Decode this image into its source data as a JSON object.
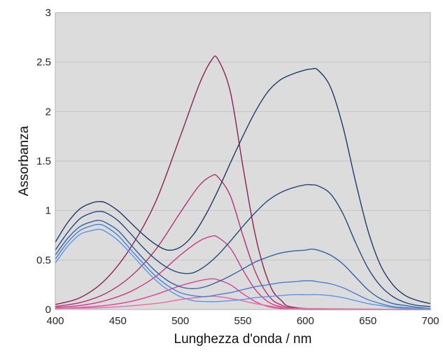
{
  "chart_data": {
    "type": "line",
    "xlabel": "Lunghezza d'onda / nm",
    "ylabel": "Assorbanza",
    "xlim": [
      400,
      700
    ],
    "ylim": [
      0,
      3
    ],
    "xticks": [
      400,
      450,
      500,
      550,
      600,
      650,
      700
    ],
    "yticks": [
      0,
      0.5,
      1,
      1.5,
      2,
      2.5,
      3
    ],
    "xtick_labels": [
      "400",
      "450",
      "500",
      "550",
      "600",
      "650",
      "700"
    ],
    "ytick_labels": [
      "0",
      "0.5",
      "1",
      "1.5",
      "2",
      "2.5",
      "3"
    ],
    "grid": "horizontal",
    "legend": "none",
    "plot_background": "#dcdcdc",
    "series": [
      {
        "color": "#8b2252",
        "x": [
          400,
          420,
          440,
          460,
          480,
          500,
          515,
          525,
          530,
          540,
          550,
          560,
          570,
          580,
          600,
          700
        ],
        "y": [
          0.05,
          0.12,
          0.3,
          0.62,
          1.08,
          1.75,
          2.27,
          2.52,
          2.53,
          2.2,
          1.45,
          0.75,
          0.3,
          0.1,
          0.01,
          0.0
        ]
      },
      {
        "color": "#b03470",
        "x": [
          400,
          420,
          440,
          460,
          480,
          500,
          515,
          525,
          530,
          540,
          550,
          560,
          570,
          580,
          600,
          700
        ],
        "y": [
          0.03,
          0.07,
          0.16,
          0.33,
          0.6,
          0.98,
          1.25,
          1.35,
          1.34,
          1.15,
          0.75,
          0.38,
          0.15,
          0.05,
          0.01,
          0.0
        ]
      },
      {
        "color": "#c83c8a",
        "x": [
          400,
          420,
          440,
          460,
          480,
          500,
          515,
          525,
          530,
          540,
          550,
          560,
          570,
          580,
          600,
          700
        ],
        "y": [
          0.02,
          0.04,
          0.09,
          0.18,
          0.33,
          0.55,
          0.69,
          0.74,
          0.73,
          0.62,
          0.4,
          0.2,
          0.08,
          0.03,
          0.0,
          0.0
        ]
      },
      {
        "color": "#e0409a",
        "x": [
          400,
          420,
          440,
          460,
          480,
          500,
          515,
          525,
          530,
          540,
          550,
          560,
          570,
          580,
          600,
          700
        ],
        "y": [
          0.01,
          0.02,
          0.04,
          0.08,
          0.15,
          0.24,
          0.29,
          0.31,
          0.3,
          0.25,
          0.16,
          0.08,
          0.03,
          0.01,
          0.0,
          0.0
        ]
      },
      {
        "color": "#e86aa8",
        "x": [
          400,
          440,
          480,
          500,
          520,
          530,
          545,
          560,
          580,
          600,
          700
        ],
        "y": [
          0.01,
          0.02,
          0.06,
          0.1,
          0.13,
          0.13,
          0.1,
          0.06,
          0.02,
          0.01,
          0.0
        ]
      },
      {
        "color": "#1e3a68",
        "x": [
          400,
          410,
          420,
          430,
          435,
          440,
          450,
          460,
          470,
          480,
          490,
          500,
          510,
          520,
          530,
          540,
          550,
          560,
          570,
          580,
          590,
          600,
          605,
          610,
          620,
          630,
          640,
          650,
          660,
          670,
          680,
          690,
          700
        ],
        "y": [
          0.68,
          0.88,
          1.02,
          1.08,
          1.09,
          1.08,
          1.0,
          0.88,
          0.76,
          0.66,
          0.6,
          0.63,
          0.75,
          0.95,
          1.2,
          1.48,
          1.75,
          2.0,
          2.2,
          2.32,
          2.38,
          2.42,
          2.43,
          2.42,
          2.25,
          1.85,
          1.3,
          0.8,
          0.45,
          0.25,
          0.14,
          0.09,
          0.06
        ]
      },
      {
        "color": "#26497e",
        "x": [
          400,
          410,
          420,
          430,
          435,
          440,
          450,
          460,
          470,
          480,
          490,
          500,
          510,
          520,
          530,
          540,
          550,
          560,
          570,
          580,
          590,
          600,
          605,
          610,
          620,
          630,
          640,
          650,
          660,
          670,
          680,
          690,
          700
        ],
        "y": [
          0.6,
          0.78,
          0.92,
          0.98,
          0.99,
          0.98,
          0.9,
          0.77,
          0.63,
          0.51,
          0.42,
          0.37,
          0.37,
          0.44,
          0.55,
          0.69,
          0.84,
          0.98,
          1.1,
          1.18,
          1.23,
          1.26,
          1.26,
          1.25,
          1.17,
          0.97,
          0.68,
          0.42,
          0.24,
          0.13,
          0.07,
          0.04,
          0.03
        ]
      },
      {
        "color": "#3362a8",
        "x": [
          400,
          410,
          420,
          430,
          435,
          440,
          450,
          460,
          470,
          480,
          490,
          500,
          510,
          520,
          530,
          540,
          550,
          560,
          570,
          580,
          590,
          600,
          605,
          610,
          620,
          630,
          640,
          650,
          660,
          670,
          680,
          690,
          700
        ],
        "y": [
          0.55,
          0.72,
          0.84,
          0.89,
          0.9,
          0.88,
          0.8,
          0.66,
          0.52,
          0.39,
          0.29,
          0.23,
          0.21,
          0.23,
          0.28,
          0.34,
          0.41,
          0.48,
          0.53,
          0.57,
          0.59,
          0.6,
          0.61,
          0.6,
          0.55,
          0.46,
          0.33,
          0.2,
          0.11,
          0.06,
          0.04,
          0.02,
          0.01
        ]
      },
      {
        "color": "#4a7fd0",
        "x": [
          400,
          410,
          420,
          430,
          435,
          440,
          450,
          460,
          470,
          480,
          490,
          500,
          510,
          520,
          530,
          540,
          550,
          560,
          570,
          580,
          590,
          600,
          605,
          610,
          620,
          630,
          640,
          650,
          660,
          670,
          680,
          690,
          700
        ],
        "y": [
          0.51,
          0.68,
          0.8,
          0.85,
          0.86,
          0.84,
          0.75,
          0.61,
          0.47,
          0.34,
          0.24,
          0.17,
          0.14,
          0.13,
          0.15,
          0.17,
          0.2,
          0.23,
          0.25,
          0.27,
          0.28,
          0.29,
          0.29,
          0.28,
          0.26,
          0.22,
          0.16,
          0.1,
          0.06,
          0.03,
          0.02,
          0.01,
          0.01
        ]
      },
      {
        "color": "#5d95e6",
        "x": [
          400,
          410,
          420,
          430,
          435,
          440,
          450,
          460,
          470,
          480,
          490,
          500,
          510,
          520,
          530,
          540,
          550,
          560,
          570,
          580,
          590,
          600,
          605,
          610,
          620,
          630,
          640,
          650,
          660,
          670,
          680,
          690,
          700
        ],
        "y": [
          0.47,
          0.64,
          0.76,
          0.8,
          0.81,
          0.79,
          0.7,
          0.57,
          0.43,
          0.3,
          0.2,
          0.13,
          0.09,
          0.08,
          0.08,
          0.09,
          0.1,
          0.12,
          0.13,
          0.14,
          0.15,
          0.15,
          0.15,
          0.15,
          0.14,
          0.12,
          0.09,
          0.06,
          0.04,
          0.02,
          0.01,
          0.01,
          0.0
        ]
      }
    ]
  }
}
